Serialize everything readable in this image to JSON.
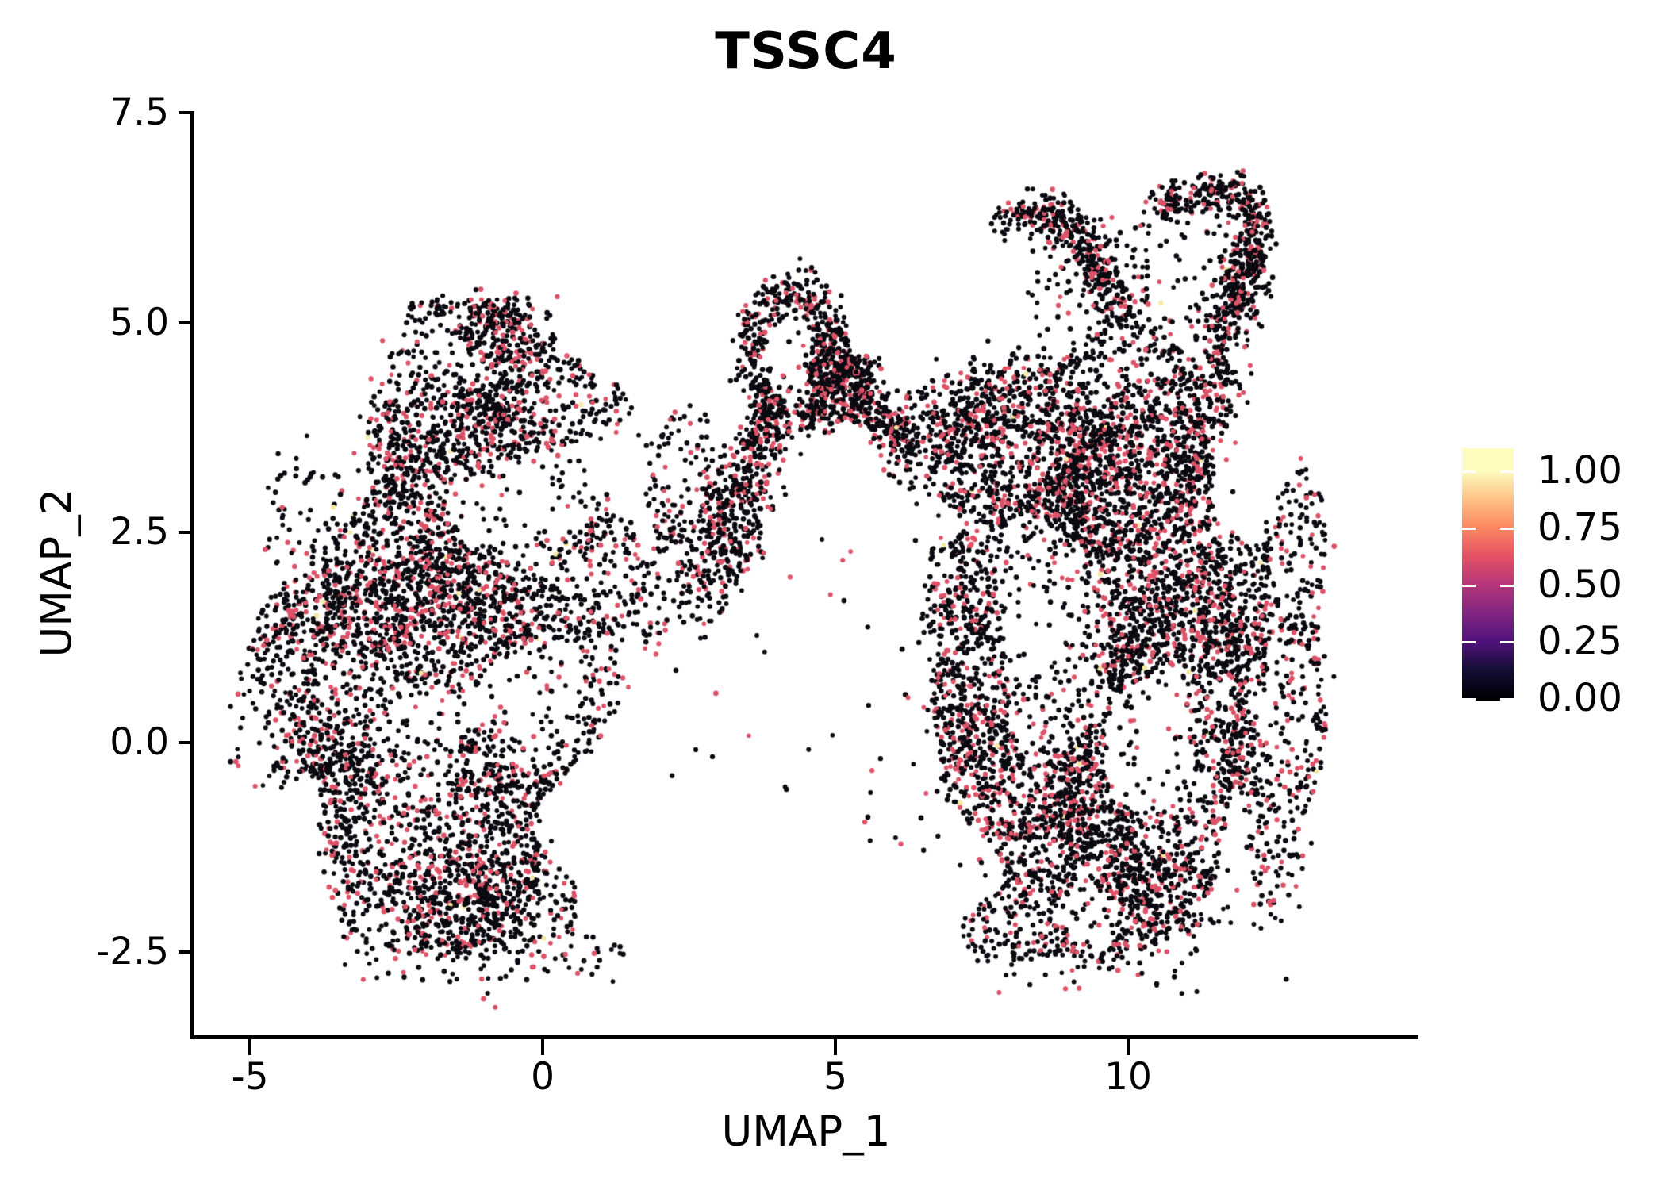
{
  "title": "TSSC4",
  "chart_data": {
    "type": "scatter",
    "title": "TSSC4",
    "xlabel": "UMAP_1",
    "ylabel": "UMAP_2",
    "xlim": [
      -5.95,
      14.96
    ],
    "ylim": [
      -3.49,
      7.52
    ],
    "grid": false,
    "x_ticks": [
      {
        "value": -5,
        "label": "-5"
      },
      {
        "value": 0,
        "label": "0"
      },
      {
        "value": 5,
        "label": "5"
      },
      {
        "value": 10,
        "label": "10"
      }
    ],
    "y_ticks": [
      {
        "value": 7.5,
        "label": "7.5"
      },
      {
        "value": 5.0,
        "label": "5.0"
      },
      {
        "value": 2.5,
        "label": "2.5"
      },
      {
        "value": 0.0,
        "label": "0.0"
      },
      {
        "value": -2.5,
        "label": "-2.5"
      }
    ],
    "point_radius_px": 3.1,
    "seed": 7,
    "point_colors": {
      "zero": "#0a0a10",
      "mid": "#DE5268",
      "high": "#F6E9A3"
    },
    "color_fractions": {
      "high": 0.004,
      "mid": 0.221,
      "zero": 0.775
    },
    "clusters": [
      {
        "id": "left-main-lower",
        "type": "disc",
        "cx": -1.85,
        "cy": 0.1,
        "rx": 2.75,
        "ry": 2.5,
        "n": 2900,
        "edge": 0.58,
        "wobble": 0.16,
        "voids": 3
      },
      {
        "id": "left-main-upper",
        "type": "disc",
        "cx": -1.15,
        "cy": 2.45,
        "rx": 2.55,
        "ry": 1.8,
        "n": 1850,
        "edge": 0.6,
        "wobble": 0.15,
        "voids": 3
      },
      {
        "id": "left-top",
        "type": "disc",
        "cx": -0.95,
        "cy": 4.15,
        "rx": 1.95,
        "ry": 1.05,
        "n": 820,
        "edge": 0.62,
        "wobble": 0.18,
        "voids": 2
      },
      {
        "id": "left-apex",
        "type": "disc",
        "cx": -0.8,
        "cy": 5.0,
        "rx": 1.05,
        "ry": 0.42,
        "n": 170,
        "edge": 0.6,
        "wobble": 0.25,
        "voids": 0
      },
      {
        "id": "left-west-fringe",
        "type": "disc",
        "cx": -4.0,
        "cy": 1.1,
        "rx": 1.05,
        "ry": 2.1,
        "n": 330,
        "edge": 0.5,
        "wobble": 0.3,
        "voids": 0
      },
      {
        "id": "left-south-tip",
        "type": "disc",
        "cx": -0.85,
        "cy": -1.85,
        "rx": 1.55,
        "ry": 0.75,
        "n": 420,
        "edge": 0.6,
        "wobble": 0.2,
        "voids": 1
      },
      {
        "id": "left-arch-bridge",
        "type": "disc",
        "cx": 2.55,
        "cy": 2.5,
        "rx": 0.95,
        "ry": 1.35,
        "n": 300,
        "edge": 0.5,
        "wobble": 0.25,
        "voids": 1
      },
      {
        "id": "arch-left-leg",
        "type": "strand",
        "pts": [
          [
            2.95,
            2.1
          ],
          [
            3.5,
            3.1
          ],
          [
            3.85,
            3.95
          ]
        ],
        "sigma": 0.22,
        "w0": 1.3,
        "w1": 0.8,
        "n": 420
      },
      {
        "id": "arch-ring",
        "type": "ring",
        "cx": 4.28,
        "cy": 4.6,
        "r": 0.72,
        "sigma": 0.16,
        "ry_scale": 1.05,
        "n": 520
      },
      {
        "id": "arch-right-shoulder",
        "type": "disc",
        "cx": 5.05,
        "cy": 4.3,
        "rx": 0.6,
        "ry": 0.55,
        "n": 360,
        "edge": 0.62,
        "wobble": 0.2,
        "voids": 0
      },
      {
        "id": "arch-right-descent",
        "type": "strand",
        "pts": [
          [
            5.35,
            4.25
          ],
          [
            5.85,
            3.8
          ],
          [
            6.35,
            3.55
          ]
        ],
        "sigma": 0.2,
        "w0": 1,
        "w1": 1,
        "n": 230
      },
      {
        "id": "arch-to-right-bridge",
        "type": "strand",
        "pts": [
          [
            6.4,
            3.6
          ],
          [
            7.1,
            3.9
          ]
        ],
        "sigma": 0.3,
        "w0": 1,
        "w1": 1.4,
        "n": 140
      },
      {
        "id": "right-main",
        "type": "disc",
        "cx": 9.55,
        "cy": 0.95,
        "rx": 2.7,
        "ry": 2.9,
        "n": 4400,
        "edge": 0.58,
        "wobble": 0.14,
        "voids": 4
      },
      {
        "id": "right-top-band",
        "type": "disc",
        "cx": 9.25,
        "cy": 3.55,
        "rx": 2.35,
        "ry": 1.25,
        "n": 1500,
        "edge": 0.6,
        "wobble": 0.16,
        "voids": 3
      },
      {
        "id": "right-east-bulge",
        "type": "disc",
        "cx": 12.35,
        "cy": 0.7,
        "rx": 1.15,
        "ry": 2.3,
        "n": 950,
        "edge": 0.58,
        "wobble": 0.2,
        "voids": 2
      },
      {
        "id": "right-south",
        "type": "disc",
        "cx": 9.3,
        "cy": -1.75,
        "rx": 1.95,
        "ry": 0.95,
        "n": 750,
        "edge": 0.6,
        "wobble": 0.18,
        "voids": 2
      },
      {
        "id": "right-west-edge",
        "type": "disc",
        "cx": 7.35,
        "cy": 1.4,
        "rx": 0.7,
        "ry": 2.25,
        "n": 470,
        "edge": 0.55,
        "wobble": 0.25,
        "voids": 1
      },
      {
        "id": "right-topleft-tip",
        "type": "disc",
        "cx": 7.95,
        "cy": 3.95,
        "rx": 0.85,
        "ry": 0.75,
        "n": 260,
        "edge": 0.6,
        "wobble": 0.2,
        "voids": 0
      },
      {
        "id": "tail-neck",
        "type": "strand",
        "pts": [
          [
            11.2,
            3.6
          ],
          [
            11.45,
            4.5
          ],
          [
            11.85,
            5.4
          ],
          [
            12.2,
            5.95
          ]
        ],
        "sigma": 0.2,
        "w0": 1.6,
        "w1": 0.8,
        "n": 520
      },
      {
        "id": "tail-hook",
        "type": "strand",
        "pts": [
          [
            12.25,
            6.05
          ],
          [
            12.1,
            6.4
          ],
          [
            11.55,
            6.55
          ],
          [
            10.9,
            6.5
          ],
          [
            10.45,
            6.3
          ]
        ],
        "sigma": 0.13,
        "w0": 1,
        "w1": 1,
        "n": 260
      },
      {
        "id": "tail-left-strand",
        "type": "strand",
        "pts": [
          [
            8.6,
            6.3
          ],
          [
            9.2,
            6.05
          ],
          [
            9.55,
            5.55
          ],
          [
            9.95,
            5.1
          ]
        ],
        "sigma": 0.16,
        "w0": 1,
        "w1": 1,
        "n": 300
      },
      {
        "id": "tail-left-arc",
        "type": "strand",
        "pts": [
          [
            7.75,
            6.15
          ],
          [
            8.3,
            6.35
          ],
          [
            8.6,
            6.3
          ]
        ],
        "sigma": 0.12,
        "w0": 1,
        "w1": 1,
        "n": 80
      },
      {
        "id": "tail-sparse",
        "type": "box",
        "x0": 8.1,
        "x1": 11.6,
        "y0": 4.9,
        "y1": 6.4,
        "n": 130
      },
      {
        "id": "below-right-sparse",
        "type": "box",
        "x0": 7.3,
        "x1": 11.3,
        "y0": -3.0,
        "y1": -2.35,
        "n": 55
      },
      {
        "id": "mid-gap-sparse",
        "type": "box",
        "x0": 2.2,
        "x1": 6.9,
        "y0": -1.3,
        "y1": 2.6,
        "n": 45
      },
      {
        "id": "below-left-sparse",
        "type": "box",
        "x0": -3.4,
        "x1": 1.4,
        "y0": -2.85,
        "y1": -2.3,
        "n": 60
      }
    ]
  },
  "legend": {
    "ticks": [
      {
        "value": 1.0,
        "label": "1.00"
      },
      {
        "value": 0.75,
        "label": "0.75"
      },
      {
        "value": 0.5,
        "label": "0.50"
      },
      {
        "value": 0.25,
        "label": "0.25"
      },
      {
        "value": 0.0,
        "label": "0.00"
      }
    ],
    "colormap": [
      {
        "v": 0.0,
        "c": "#000004"
      },
      {
        "v": 0.125,
        "c": "#140E36"
      },
      {
        "v": 0.25,
        "c": "#51127C"
      },
      {
        "v": 0.375,
        "c": "#822681"
      },
      {
        "v": 0.5,
        "c": "#B63679"
      },
      {
        "v": 0.625,
        "c": "#E65164"
      },
      {
        "v": 0.75,
        "c": "#FB8861"
      },
      {
        "v": 0.875,
        "c": "#FEC287"
      },
      {
        "v": 1.0,
        "c": "#FCFDBF"
      }
    ],
    "tick_color": "#ffffff"
  },
  "colors": {
    "axis": "#000000",
    "text": "#000000",
    "background": "#ffffff"
  }
}
